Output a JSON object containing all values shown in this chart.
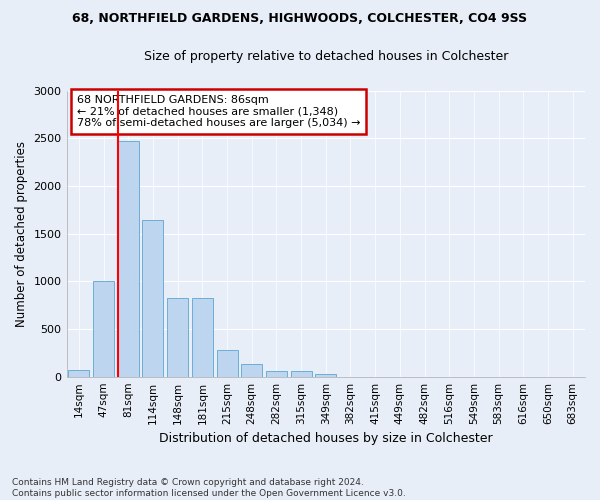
{
  "title1": "68, NORTHFIELD GARDENS, HIGHWOODS, COLCHESTER, CO4 9SS",
  "title2": "Size of property relative to detached houses in Colchester",
  "xlabel": "Distribution of detached houses by size in Colchester",
  "ylabel": "Number of detached properties",
  "categories": [
    "14sqm",
    "47sqm",
    "81sqm",
    "114sqm",
    "148sqm",
    "181sqm",
    "215sqm",
    "248sqm",
    "282sqm",
    "315sqm",
    "349sqm",
    "382sqm",
    "415sqm",
    "449sqm",
    "482sqm",
    "516sqm",
    "549sqm",
    "583sqm",
    "616sqm",
    "650sqm",
    "683sqm"
  ],
  "values": [
    65,
    1000,
    2470,
    1640,
    830,
    830,
    280,
    130,
    55,
    55,
    30,
    0,
    0,
    0,
    0,
    0,
    0,
    0,
    0,
    0,
    0
  ],
  "bar_color": "#BDD5EE",
  "bar_edge_color": "#6AAED6",
  "annotation_text": "68 NORTHFIELD GARDENS: 86sqm\n← 21% of detached houses are smaller (1,348)\n78% of semi-detached houses are larger (5,034) →",
  "annotation_box_color": "#ffffff",
  "annotation_box_edge": "#cc0000",
  "ylim": [
    0,
    3000
  ],
  "yticks": [
    0,
    500,
    1000,
    1500,
    2000,
    2500,
    3000
  ],
  "background_color": "#e8eef8",
  "grid_color": "#ffffff",
  "footer": "Contains HM Land Registry data © Crown copyright and database right 2024.\nContains public sector information licensed under the Open Government Licence v3.0."
}
